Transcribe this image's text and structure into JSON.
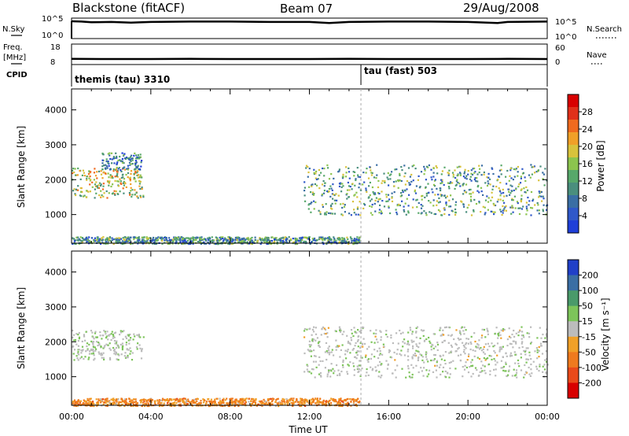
{
  "header": {
    "station": "Blackstone (fitACF)",
    "beam": "Beam 07",
    "date": "29/Aug/2008"
  },
  "colors": {
    "frame": "#000000",
    "power_scale": [
      "#1f3fd8",
      "#2f58c9",
      "#3a6ea4",
      "#4a8e7d",
      "#57a86a",
      "#8cc44e",
      "#d8c23c",
      "#f0a028",
      "#ef6a1e",
      "#e0301a",
      "#d80000"
    ],
    "velocity_scale": [
      "#2040c8",
      "#3a6ea4",
      "#4a9a6a",
      "#7dc45a",
      "#bcbcbc",
      "#f0a028",
      "#ef7a1e",
      "#e94a1a",
      "#d80000"
    ]
  },
  "chart_data": [
    {
      "type": "line",
      "name": "sky-search-noise",
      "ylabel": "N.Sky",
      "ytick_labels": [
        "10^5",
        "10^0"
      ],
      "right_tick_labels": [
        "10^5",
        "10^0"
      ],
      "right_label": "N.Search",
      "x": [
        0.0,
        0.5,
        1.0,
        2.0,
        3.0,
        4.0,
        6.0,
        8.0,
        10.0,
        12.0,
        13.0,
        14.0,
        16.0,
        18.0,
        20.0,
        21.5,
        22.0,
        24.0
      ],
      "values": [
        5,
        4.9,
        4.7,
        4.8,
        4.6,
        4.8,
        4.9,
        4.9,
        4.8,
        4.8,
        4.5,
        4.8,
        4.9,
        4.9,
        4.8,
        4.5,
        4.8,
        4.9
      ]
    },
    {
      "type": "line",
      "name": "frequency-nave",
      "ylabel": "Freq. [MHz]",
      "ytick_labels": [
        "18",
        "8"
      ],
      "right_tick_labels": [
        "60",
        "0"
      ],
      "right_label": "Nave",
      "x": [
        0,
        2,
        4,
        6,
        8,
        10,
        12,
        14,
        16,
        18,
        20,
        22,
        24
      ],
      "values": [
        10.5,
        10.4,
        10.4,
        10.5,
        10.4,
        10.4,
        10.4,
        10.5,
        10.4,
        10.4,
        10.4,
        10.5,
        10.4
      ]
    },
    {
      "type": "table",
      "name": "cpid",
      "ylabel": "CPID",
      "segments": [
        {
          "label": "themis (tau) 3310",
          "start": 0.0,
          "end": 14.6
        },
        {
          "label": "tau (fast) 503",
          "start": 14.6,
          "end": 24.0
        }
      ]
    },
    {
      "type": "heatmap",
      "name": "power",
      "ylabel": "Slant Range [km]",
      "yticks": [
        1000,
        2000,
        3000,
        4000
      ],
      "ylim": [
        180,
        4600
      ],
      "xlim": [
        0,
        24
      ],
      "colorbar_label": "Power [dB]",
      "colorbar_ticks": [
        "4",
        "8",
        "12",
        "16",
        "20",
        "24",
        "28"
      ],
      "regions": [
        {
          "x": [
            0.0,
            3.6
          ],
          "y": [
            1500,
            2350
          ],
          "level": 0.55
        },
        {
          "x": [
            1.5,
            3.5
          ],
          "y": [
            2300,
            2800
          ],
          "level": 0.25
        },
        {
          "x": [
            11.7,
            24.0
          ],
          "y": [
            1000,
            2450
          ],
          "level": 0.35
        },
        {
          "x": [
            0.0,
            14.5
          ],
          "y": [
            180,
            380
          ],
          "level": 0.3
        }
      ]
    },
    {
      "type": "heatmap",
      "name": "velocity",
      "ylabel": "Slant Range [km]",
      "yticks": [
        1000,
        2000,
        3000,
        4000
      ],
      "ylim": [
        180,
        4600
      ],
      "xlim": [
        0,
        24
      ],
      "xlabel": "Time UT",
      "xtick_labels": [
        "00:00",
        "04:00",
        "08:00",
        "12:00",
        "16:00",
        "20:00",
        "00:00"
      ],
      "colorbar_label": "Velocity [m s⁻¹]",
      "colorbar_ticks": [
        "200",
        "100",
        "50",
        "15",
        "-15",
        "-50",
        "-100",
        "-200"
      ],
      "regions": [
        {
          "x": [
            0.0,
            3.6
          ],
          "y": [
            1500,
            2350
          ],
          "level": 0.1
        },
        {
          "x": [
            11.7,
            24.0
          ],
          "y": [
            1000,
            2450
          ],
          "level": 0.05
        },
        {
          "x": [
            0.0,
            14.5
          ],
          "y": [
            180,
            400
          ],
          "level": -0.4
        }
      ]
    }
  ]
}
